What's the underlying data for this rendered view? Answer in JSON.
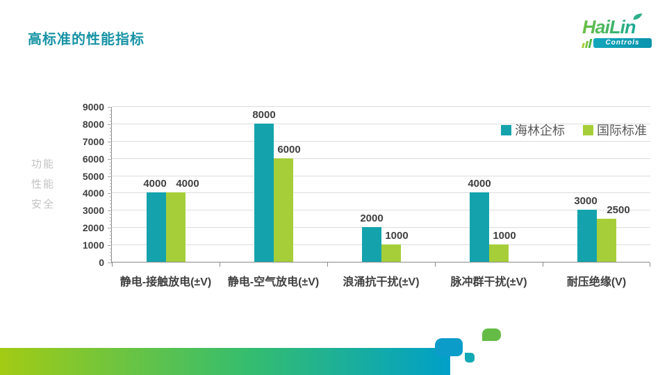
{
  "slide": {
    "title": "高标准的性能指标",
    "side_labels": [
      "功能",
      "性能",
      "安全"
    ],
    "logo": {
      "brand": "HaiLin",
      "subtitle": "Controls"
    }
  },
  "chart_data": {
    "type": "bar",
    "categories": [
      "静电-接触放电(±V)",
      "静电-空气放电(±V)",
      "浪涌抗干扰(±V)",
      "脉冲群干扰(±V)",
      "耐压绝缘(V)"
    ],
    "series": [
      {
        "name": "海林企标",
        "color": "#14A3AD",
        "values": [
          4000,
          8000,
          2000,
          4000,
          3000
        ]
      },
      {
        "name": "国际标准",
        "color": "#A6CE39",
        "values": [
          4000,
          6000,
          1000,
          1000,
          2500
        ]
      }
    ],
    "title": "",
    "xlabel": "",
    "ylabel": "功能 性能 安全",
    "ylim": [
      0,
      9000
    ],
    "ytick_step": 1000,
    "yminor_step": 200,
    "grid": true,
    "legend_position": "top-right-inside"
  },
  "colors": {
    "title": "#1793A5",
    "axis_text": "#404040",
    "side_label": "#C2C2C2",
    "legend_text": "#595959",
    "gridline": "#DCDCDC",
    "axis_line": "#898989",
    "band_left": "#A3CB14",
    "band_mid": "#35BD6E",
    "band_right": "#00A0C8",
    "deco_teal_large": "#0C9CC9",
    "deco_teal_small": "#12A9B4",
    "deco_green": "#64BC46"
  }
}
